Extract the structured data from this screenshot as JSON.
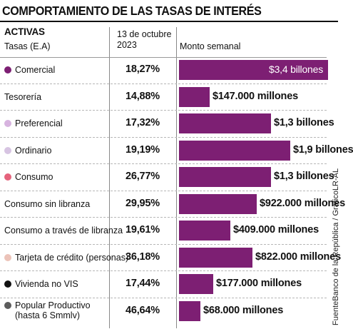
{
  "title": "COMPORTAMIENTO DE LAS TASAS DE INTERÉS",
  "header": {
    "category": "ACTIVAS",
    "subcategory": "Tasas (E.A)",
    "date_line1": "13 de octubre",
    "date_line2": "2023",
    "amount": "Monto semanal"
  },
  "source": "FuenteBanco de la República / GráficoLR-AL",
  "colors": {
    "bar": "#7d1f73"
  },
  "rows": [
    {
      "label": "Comercial",
      "dot": "#7d1f73",
      "rate": "18,27%",
      "amount_label": "$3,4 billones",
      "label_inside": true
    },
    {
      "label": "Tesorería",
      "dot": "",
      "rate": "14,88%",
      "amount_label": "$147.000 millones",
      "label_inside": false
    },
    {
      "label": "Preferencial",
      "dot": "#d7b3df",
      "rate": "17,32%",
      "amount_label": "$1,3 billones",
      "label_inside": false
    },
    {
      "label": "Ordinario",
      "dot": "#d7c4e2",
      "rate": "19,19%",
      "amount_label": "$1,9 billones",
      "label_inside": false
    },
    {
      "label": "Consumo",
      "dot": "#e5637c",
      "rate": "26,77%",
      "amount_label": "$1,3 billones",
      "label_inside": false
    },
    {
      "label": "Consumo sin libranza",
      "dot": "",
      "rate": "29,95%",
      "amount_label": "$922.000 millones",
      "label_inside": false
    },
    {
      "label": "Consumo a través de libranza",
      "dot": "",
      "rate": "19,61%",
      "amount_label": "$409.000 millones",
      "label_inside": false
    },
    {
      "label": "Tarjeta de crédito (personas)",
      "dot": "#ecc3b9",
      "rate": "36,18%",
      "amount_label": "$822.000 millones",
      "label_inside": false
    },
    {
      "label": "Vivienda no VIS",
      "dot": "#111111",
      "rate": "17,44%",
      "amount_label": "$177.000 millones",
      "label_inside": false
    },
    {
      "label": "Popular Productivo",
      "label2": "(hasta 6 Smmlv)",
      "dot": "#5c5c5c",
      "rate": "46,64%",
      "amount_label": "$68.000 millones",
      "label_inside": false
    }
  ],
  "chart_data": {
    "type": "bar",
    "orientation": "horizontal",
    "unit": "COP",
    "categories": [
      "Comercial",
      "Tesorería",
      "Preferencial",
      "Ordinario",
      "Consumo",
      "Consumo sin libranza",
      "Consumo a través de libranza",
      "Tarjeta de crédito (personas)",
      "Vivienda no VIS",
      "Popular Productivo (hasta 6 Smmlv)"
    ],
    "rates": [
      "18,27%",
      "14,88%",
      "17,32%",
      "19,19%",
      "26,77%",
      "29,95%",
      "19,61%",
      "36,18%",
      "17,44%",
      "46,64%"
    ],
    "values": [
      3400000000000,
      147000000000,
      1300000000000,
      1900000000000,
      1300000000000,
      922000000000,
      409000000000,
      822000000000,
      177000000000,
      68000000000
    ]
  }
}
